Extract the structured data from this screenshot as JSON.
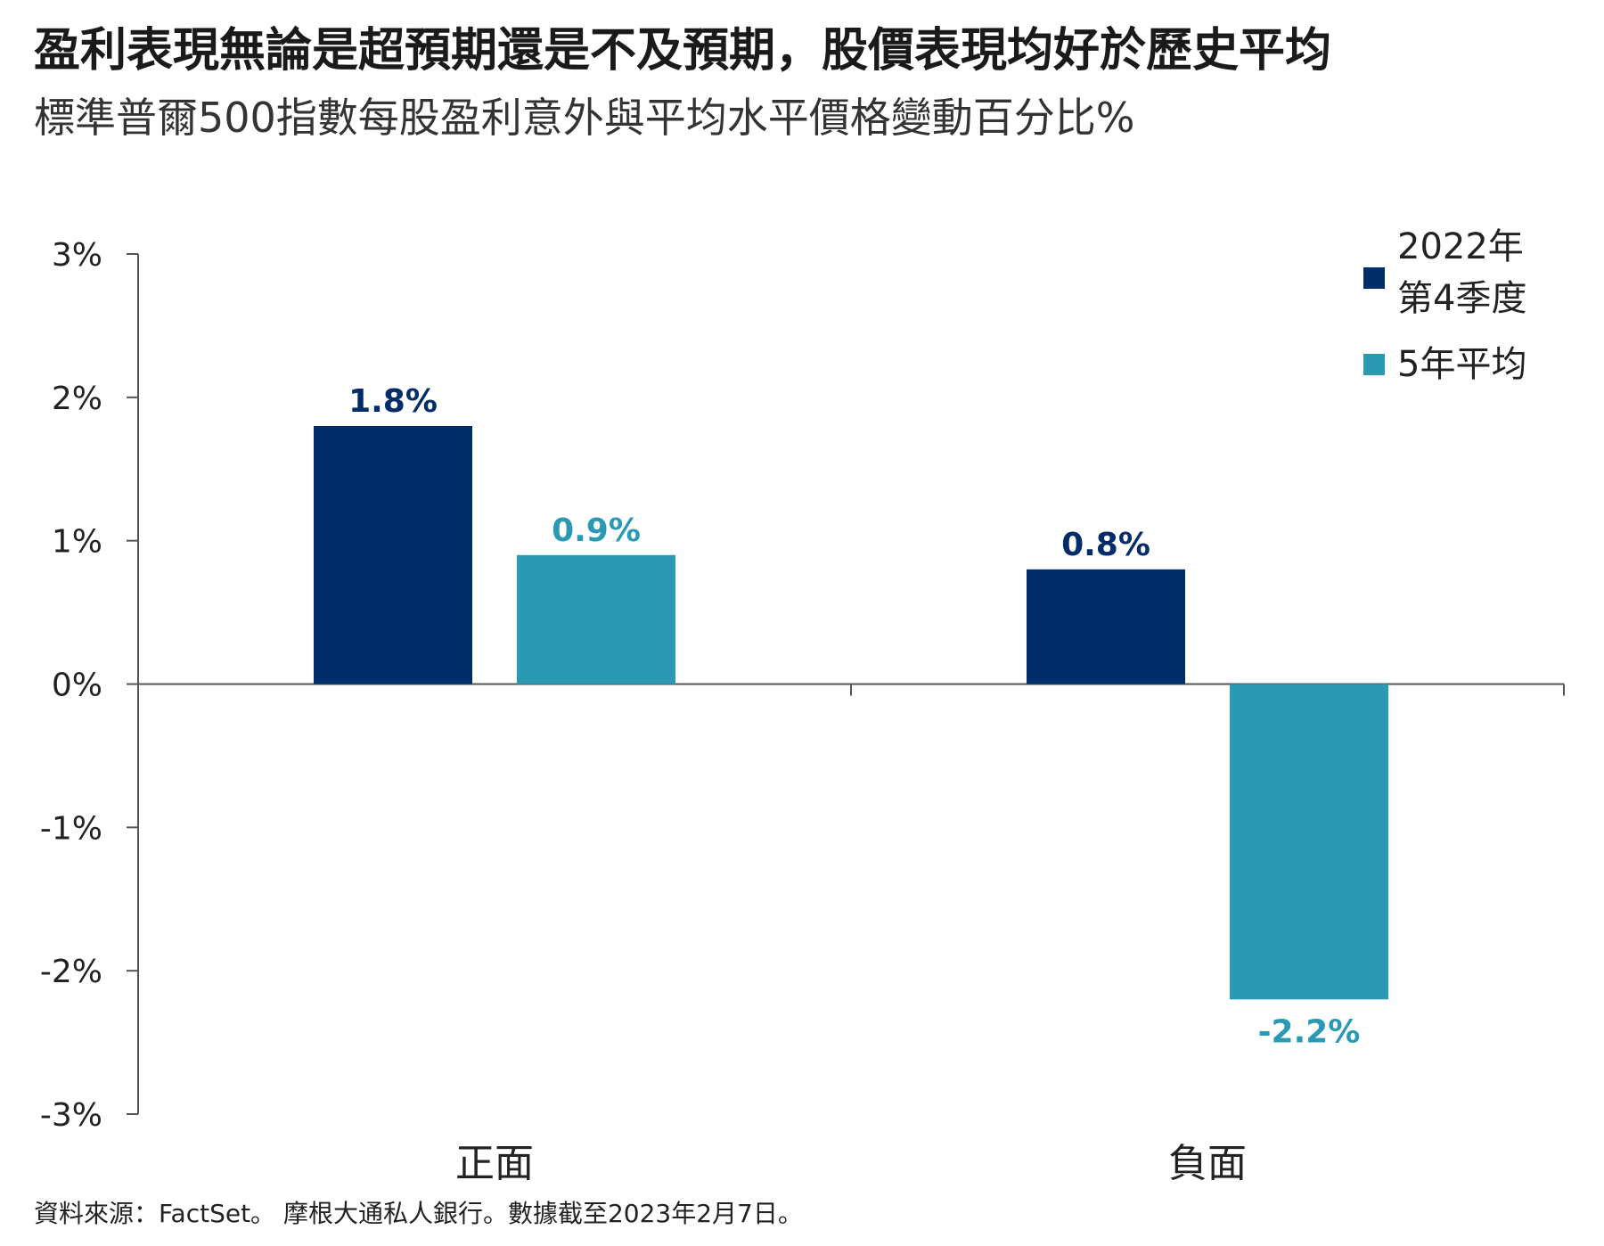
{
  "title": "盈利表現無論是超預期還是不及預期，股價表現均好於歷史平均",
  "subtitle": "標準普爾500指數每股盈利意外與平均水平價格變動百分比%",
  "source": "資料來源：FactSet。 摩根大通私人銀行。數據截至2023年2月7日。",
  "chart_data": {
    "type": "bar",
    "categories": [
      "正面",
      "負面"
    ],
    "series": [
      {
        "name": "2022年 第4季度",
        "values": [
          1.8,
          0.8
        ],
        "labels": [
          "1.8%",
          "0.8%"
        ],
        "color": "#002d6a"
      },
      {
        "name": "5年平均",
        "values": [
          0.9,
          -2.2
        ],
        "labels": [
          "0.9%",
          "-2.2%"
        ],
        "color": "#2a9ab4"
      }
    ],
    "ylim": [
      -3,
      3
    ],
    "yticks": [
      3,
      2,
      1,
      0,
      -1,
      -2,
      -3
    ],
    "ytick_labels": [
      "3%",
      "2%",
      "1%",
      "0%",
      "-1%",
      "-2%",
      "-3%"
    ],
    "xlabel": "",
    "ylabel": "",
    "grid": false,
    "legend_position": "top-right"
  }
}
